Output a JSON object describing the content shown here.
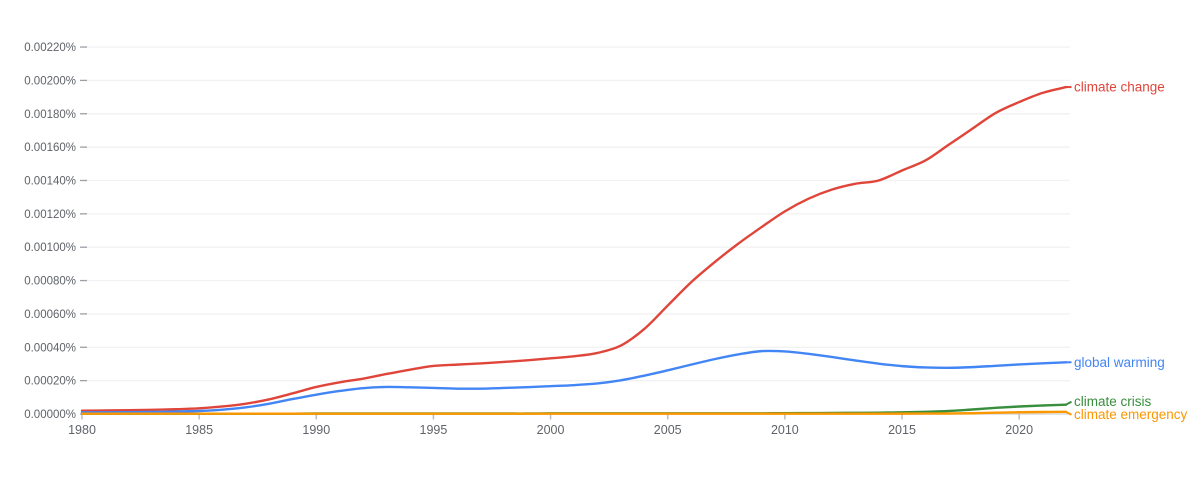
{
  "chart_data": {
    "type": "line",
    "title": "",
    "xlabel": "",
    "ylabel": "",
    "x_range": [
      1980,
      2022
    ],
    "x_ticks": [
      1980,
      1985,
      1990,
      1995,
      2000,
      2005,
      2010,
      2015,
      2020
    ],
    "x_tick_labels": [
      "1980",
      "1985",
      "1990",
      "1995",
      "2000",
      "2005",
      "2010",
      "2015",
      "2020"
    ],
    "y_tick_values": [
      0.0,
      0.0002,
      0.0004,
      0.0006,
      0.0008,
      0.001,
      0.0012,
      0.0014,
      0.0016,
      0.0018,
      0.002,
      0.0022
    ],
    "y_tick_labels": [
      "0.00000%",
      "0.00020%",
      "0.00040%",
      "0.00060%",
      "0.00080%",
      "0.00100%",
      "0.00120%",
      "0.00140%",
      "0.00160%",
      "0.00180%",
      "0.00200%",
      "0.00220%"
    ],
    "ylim": [
      0.0,
      0.0023
    ],
    "grid": "horizontal",
    "legend_position": "end-of-line-labels",
    "colors": {
      "grid": "#f2f2f2",
      "baseline": "#d9d9d9",
      "tick": "#9aa0a6",
      "axis_text": "#5f6368"
    },
    "series": [
      {
        "name": "climate change",
        "color": "#e0453a",
        "values": [
          2e-05,
          2.1e-05,
          2.25e-05,
          2.5e-05,
          2.85e-05,
          3.4e-05,
          4.5e-05,
          6.2e-05,
          8.8e-05,
          0.000124,
          0.000162,
          0.00019,
          0.000212,
          0.00024,
          0.000266,
          0.000288,
          0.000296,
          0.000303,
          0.000312,
          0.000322,
          0.000334,
          0.000346,
          0.000366,
          0.00041,
          0.00051,
          0.00065,
          0.00079,
          0.00091,
          0.00102,
          0.00112,
          0.001215,
          0.00129,
          0.001345,
          0.00138,
          0.0014,
          0.00146,
          0.00152,
          0.001615,
          0.00171,
          0.001805,
          0.00187,
          0.001925,
          0.00196
        ]
      },
      {
        "name": "global warming",
        "color": "#4285f4",
        "values": [
          1e-05,
          1e-05,
          1.1e-05,
          1.25e-05,
          1.45e-05,
          1.8e-05,
          2.6e-05,
          4e-05,
          6.2e-05,
          9e-05,
          0.000116,
          0.000138,
          0.000155,
          0.000162,
          0.00016,
          0.000156,
          0.000152,
          0.000152,
          0.000156,
          0.000161,
          0.000167,
          0.000173,
          0.000183,
          0.000202,
          0.00023,
          0.000262,
          0.000296,
          0.000329,
          0.000357,
          0.000377,
          0.000375,
          0.000361,
          0.000342,
          0.000321,
          0.000302,
          0.000287,
          0.000279,
          0.000277,
          0.000281,
          0.000289,
          0.000297,
          0.000304,
          0.00031
        ]
      },
      {
        "name": "climate crisis",
        "color": "#388e3c",
        "values": [
          2e-06,
          2e-06,
          2e-06,
          2e-06,
          2e-06,
          2e-06,
          2e-06,
          2e-06,
          2e-06,
          2e-06,
          3e-06,
          3e-06,
          3e-06,
          3e-06,
          3e-06,
          3e-06,
          3e-06,
          3e-06,
          3e-06,
          3e-06,
          4e-06,
          4e-06,
          4e-06,
          4e-06,
          4e-06,
          4e-06,
          4e-06,
          4e-06,
          4e-06,
          4e-06,
          5e-06,
          5.5e-06,
          6e-06,
          7e-06,
          8e-06,
          1e-05,
          1.3e-05,
          1.8e-05,
          2.7e-05,
          3.7e-05,
          4.5e-05,
          5.1e-05,
          5.6e-05
        ]
      },
      {
        "name": "climate emergency",
        "color": "#fb9700",
        "values": [
          2e-06,
          2e-06,
          2e-06,
          2e-06,
          2e-06,
          2e-06,
          2e-06,
          2e-06,
          2e-06,
          2e-06,
          2e-06,
          2e-06,
          2e-06,
          2e-06,
          2e-06,
          2e-06,
          2e-06,
          2e-06,
          2e-06,
          2e-06,
          2e-06,
          2e-06,
          2e-06,
          2e-06,
          2e-06,
          2e-06,
          2e-06,
          2e-06,
          2e-06,
          2e-06,
          2e-06,
          2e-06,
          2e-06,
          2e-06,
          2e-06,
          2.2e-06,
          2.5e-06,
          3e-06,
          4.5e-06,
          8e-06,
          1.05e-05,
          1.2e-05,
          1.3e-05
        ]
      }
    ]
  }
}
